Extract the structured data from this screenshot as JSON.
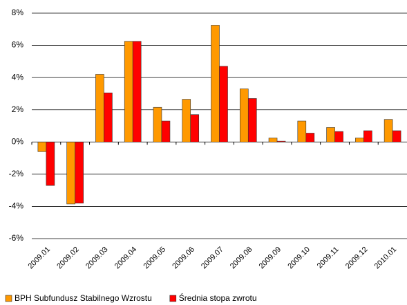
{
  "chart_data": {
    "type": "bar",
    "categories": [
      "2009.01",
      "2009.02",
      "2009.03",
      "2009.04",
      "2009.05",
      "2009.06",
      "2009.07",
      "2009.08",
      "2009.09",
      "2009.10",
      "2009.11",
      "2009.12",
      "2010.01"
    ],
    "series": [
      {
        "name": "BPH Subfundusz Stabilnego Wzrostu",
        "color": "#ff9900",
        "values": [
          -0.6,
          -3.85,
          4.2,
          6.25,
          2.15,
          2.65,
          7.25,
          3.3,
          0.25,
          1.3,
          0.9,
          0.25,
          1.4
        ]
      },
      {
        "name": "Średnia stopa zwrotu",
        "color": "#ff0000",
        "values": [
          -2.7,
          -3.8,
          3.05,
          6.25,
          1.3,
          1.7,
          4.7,
          2.7,
          0.05,
          0.55,
          0.65,
          0.7,
          0.7
        ]
      }
    ],
    "ylim": [
      -6,
      8
    ],
    "yticks": [
      {
        "value": -6,
        "label": "-6%"
      },
      {
        "value": -4,
        "label": "-4%"
      },
      {
        "value": -2,
        "label": "-2%"
      },
      {
        "value": 0,
        "label": "0%"
      },
      {
        "value": 2,
        "label": "2%"
      },
      {
        "value": 4,
        "label": "4%"
      },
      {
        "value": 6,
        "label": "6%"
      },
      {
        "value": 8,
        "label": "8%"
      }
    ],
    "grid": true,
    "legend": "bottom"
  }
}
